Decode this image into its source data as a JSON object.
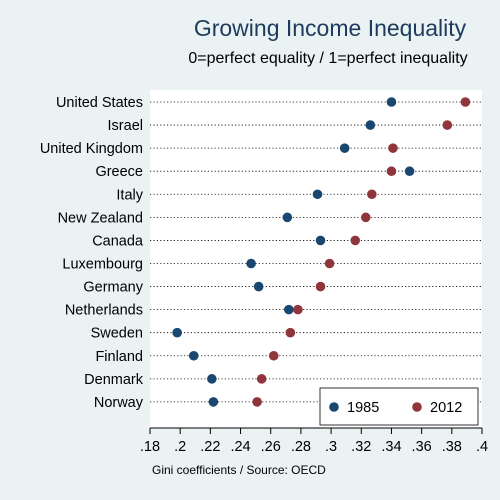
{
  "chart_data": {
    "type": "scatter",
    "title": "Growing Income Inequality",
    "subtitle": "0=perfect equality / 1=perfect inequality",
    "note": "Gini coefficients / Source: OECD",
    "categories": [
      "United States",
      "Israel",
      "United Kingdom",
      "Greece",
      "Italy",
      "New Zealand",
      "Canada",
      "Luxembourg",
      "Germany",
      "Netherlands",
      "Sweden",
      "Finland",
      "Denmark",
      "Norway"
    ],
    "series": [
      {
        "name": "1985",
        "color": "#1a476f",
        "values": [
          0.34,
          0.326,
          0.309,
          0.352,
          0.291,
          0.271,
          0.293,
          0.247,
          0.252,
          0.272,
          0.198,
          0.209,
          0.221,
          0.222
        ]
      },
      {
        "name": "2012",
        "color": "#90353b",
        "values": [
          0.389,
          0.377,
          0.341,
          0.34,
          0.327,
          0.323,
          0.316,
          0.299,
          0.293,
          0.278,
          0.273,
          0.262,
          0.254,
          0.251
        ]
      }
    ],
    "xlim": [
      0.18,
      0.4
    ],
    "xticks": [
      0.18,
      0.2,
      0.22,
      0.24,
      0.26,
      0.28,
      0.3,
      0.32,
      0.34,
      0.36,
      0.38,
      0.4
    ],
    "xtick_labels": [
      ".18",
      ".2",
      ".22",
      ".24",
      ".26",
      ".28",
      ".3",
      ".32",
      ".34",
      ".36",
      ".38",
      ".4"
    ],
    "grid": "dotted horizontal",
    "legend_position": "bottom-right"
  }
}
